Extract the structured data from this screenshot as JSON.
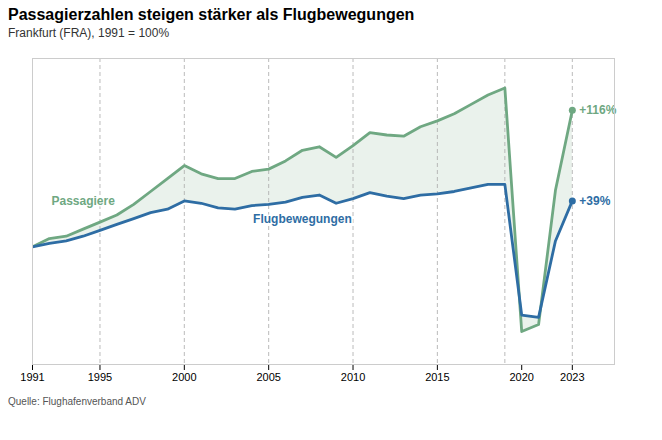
{
  "chart_data": {
    "type": "line",
    "title": "Passagierzahlen steigen stärker als Flugbewegungen",
    "subtitle": "Frankfurt (FRA), 1991 = 100%",
    "source": "Quelle: Flughafenverband ADV",
    "x": [
      1991,
      1992,
      1993,
      1994,
      1995,
      1996,
      1997,
      1998,
      1999,
      2000,
      2001,
      2002,
      2003,
      2004,
      2005,
      2006,
      2007,
      2008,
      2009,
      2010,
      2011,
      2012,
      2013,
      2014,
      2015,
      2016,
      2017,
      2018,
      2019,
      2020,
      2021,
      2022,
      2023
    ],
    "series": [
      {
        "name": "Passagiere",
        "color": "#6fa882",
        "annotation": "+116%",
        "values": [
          100,
          107,
          109,
          115,
          121,
          127,
          136,
          147,
          158,
          169,
          162,
          158,
          158,
          164,
          166,
          173,
          182,
          185,
          176,
          186,
          197,
          195,
          194,
          202,
          207,
          213,
          221,
          229,
          235,
          28,
          34,
          148,
          216
        ]
      },
      {
        "name": "Flugbewegungen",
        "color": "#2e6da4",
        "annotation": "+39%",
        "values": [
          100,
          103,
          105,
          109,
          114,
          119,
          124,
          129,
          132,
          139,
          137,
          133,
          132,
          135,
          136,
          138,
          142,
          144,
          137,
          141,
          146,
          143,
          141,
          144,
          145,
          147,
          150,
          153,
          153,
          42,
          40,
          105,
          139
        ]
      }
    ],
    "vlines_x": [
      1995,
      2000,
      2005,
      2010,
      2015,
      2019,
      2023
    ],
    "xlim": [
      1991,
      2025.5
    ],
    "xticks": [
      1991,
      1995,
      2000,
      2005,
      2010,
      2015,
      2020,
      2023
    ],
    "ylim": [
      0,
      260
    ],
    "tick_labels": "x",
    "grid": false
  }
}
